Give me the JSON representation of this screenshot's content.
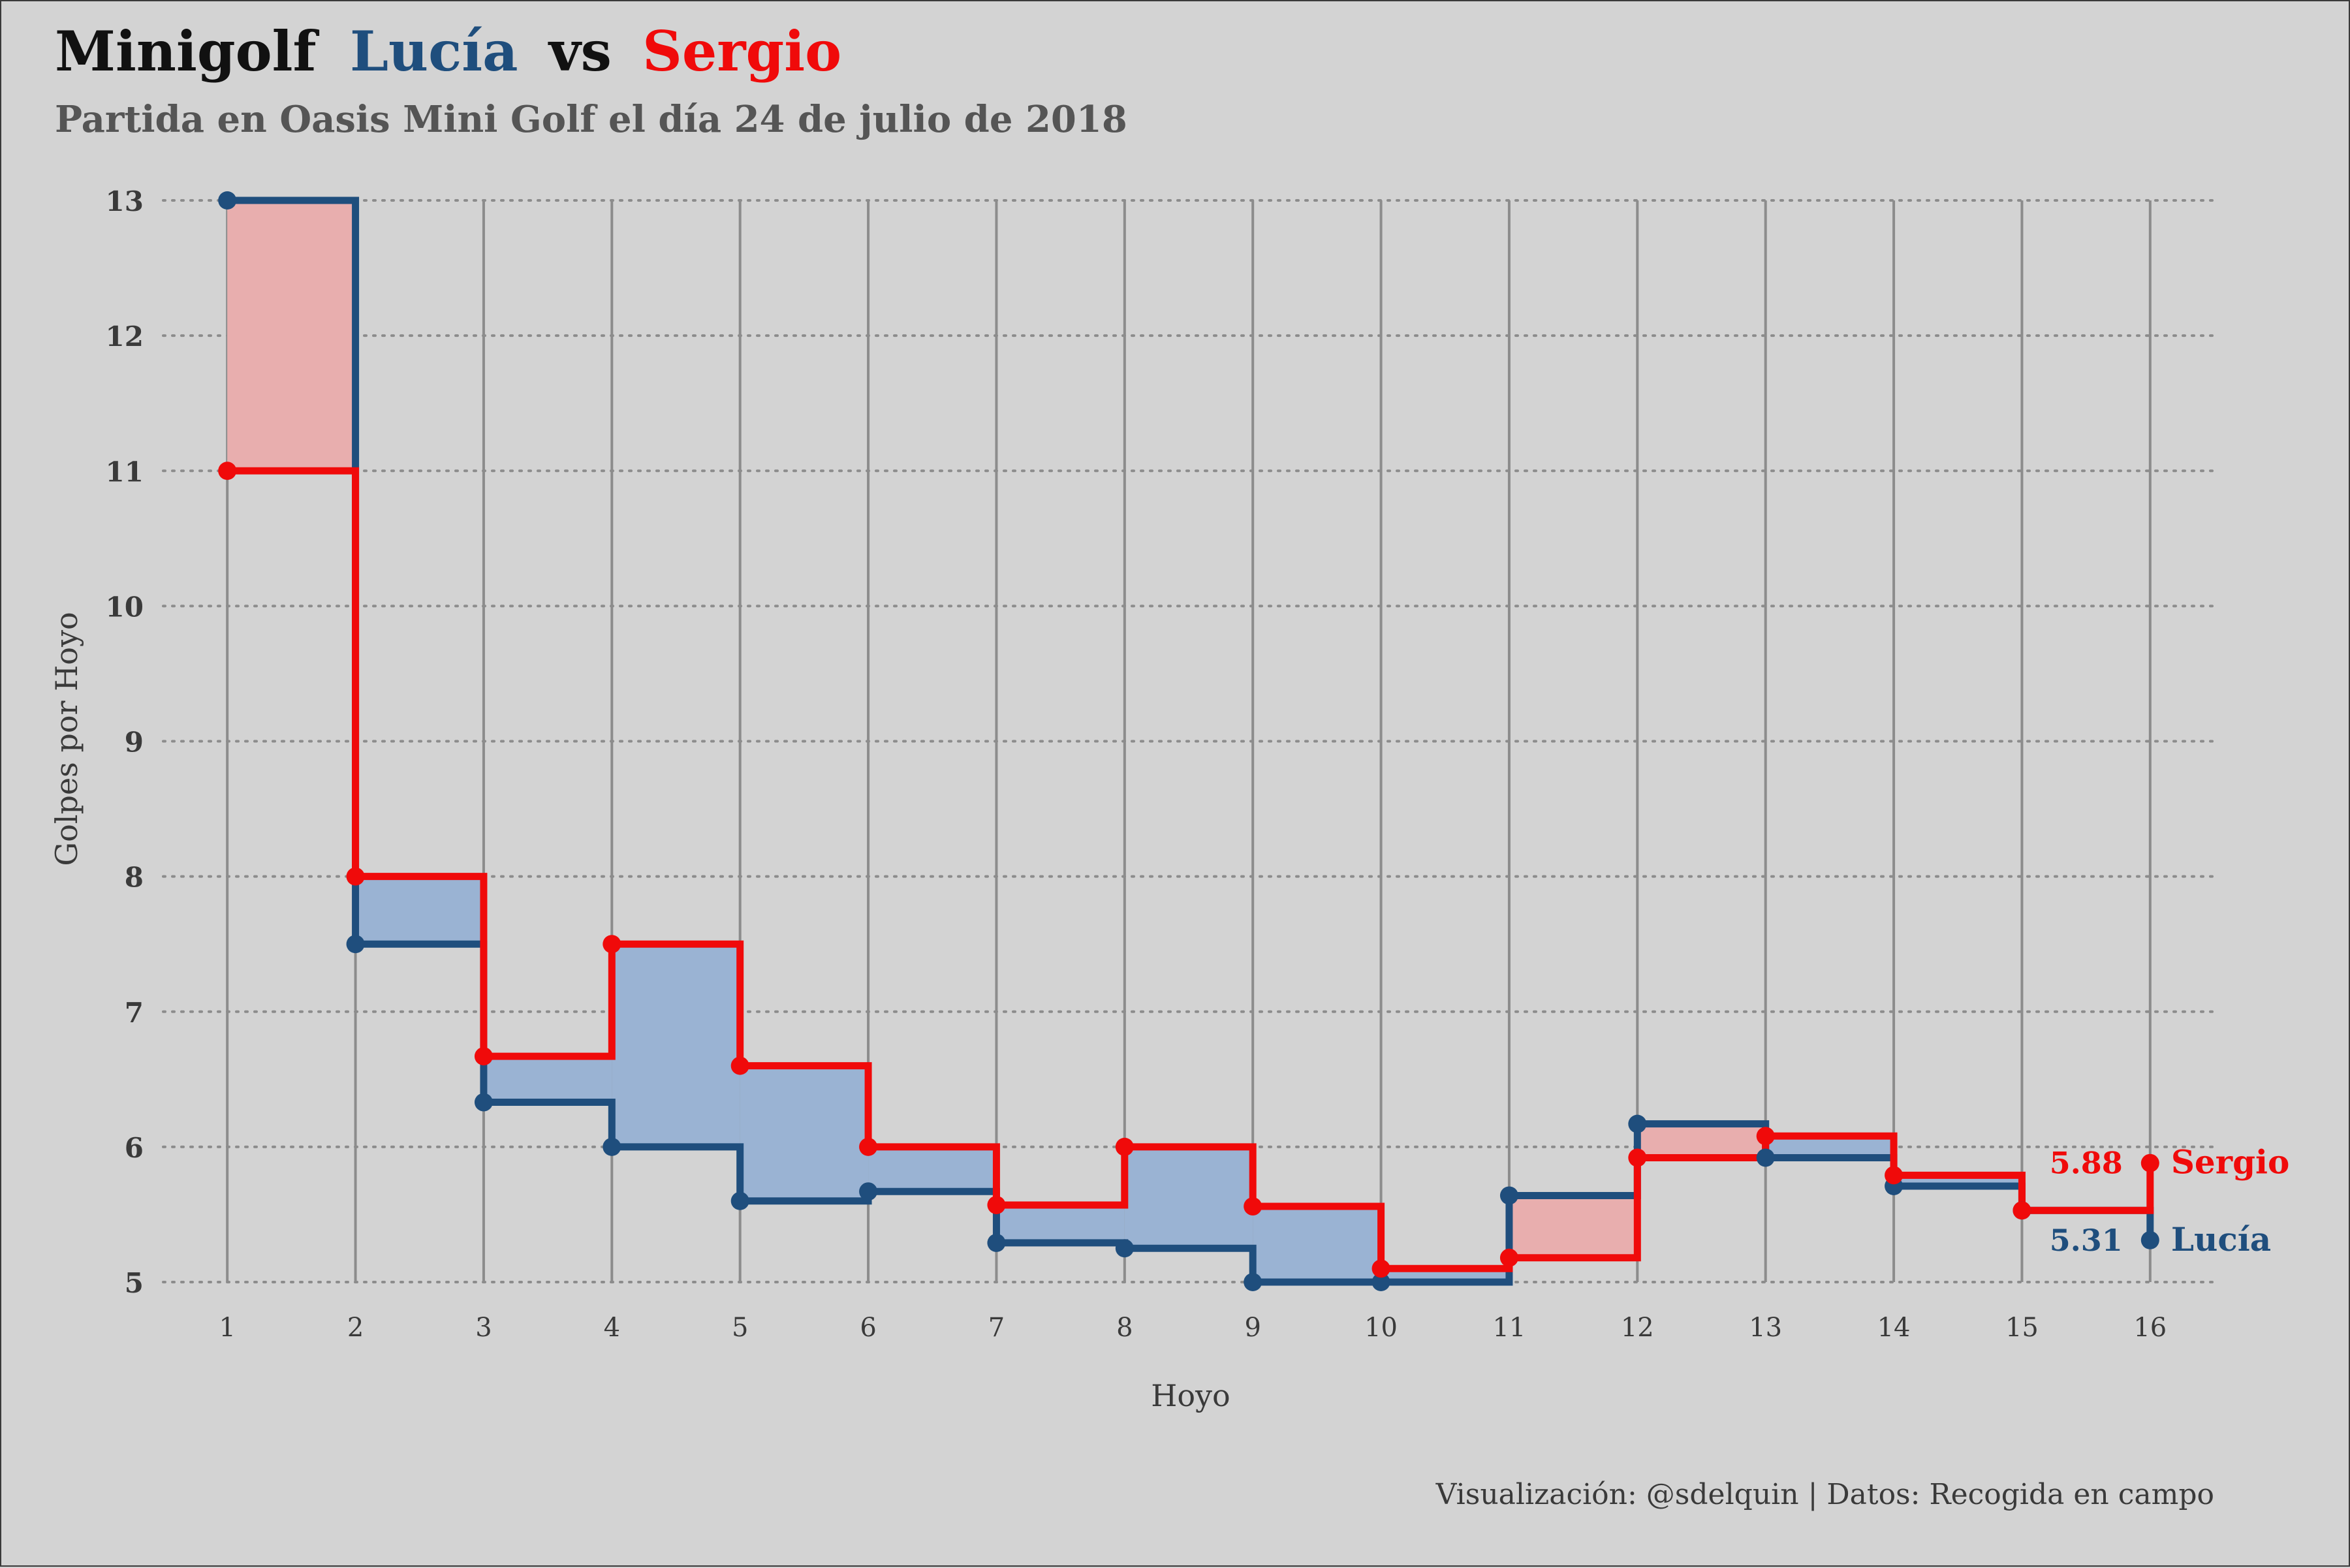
{
  "colors": {
    "background": "#d3d3d3",
    "lucia": "#1f4e7d",
    "sergio": "#f00a0a",
    "fill_blue": "#9ab3d3",
    "fill_red": "#e8aeae",
    "title": "#111111",
    "subtitle": "#555555",
    "axis_text": "#3a3a3a",
    "grid_x": "#8c8c8c",
    "grid_y": "#8c8c8c"
  },
  "header": {
    "title_prefix": "Minigolf",
    "title_player1": "Lucía",
    "title_vs": "vs",
    "title_player2": "Sergio",
    "subtitle": "Partida en Oasis Mini Golf el día 24 de julio de 2018"
  },
  "caption": "Visualización: @sdelquin | Datos: Recogida en campo",
  "chart_data": {
    "type": "line",
    "step": true,
    "x": [
      1,
      2,
      3,
      4,
      5,
      6,
      7,
      8,
      9,
      10,
      11,
      12,
      13,
      14,
      15,
      16
    ],
    "xlabel": "Hoyo",
    "ylabel": "Golpes por Hoyo",
    "xlim": [
      0.5,
      16.5
    ],
    "ylim": [
      5,
      13
    ],
    "x_ticks": [
      "1",
      "2",
      "3",
      "4",
      "5",
      "6",
      "7",
      "8",
      "9",
      "10",
      "11",
      "12",
      "13",
      "14",
      "15",
      "16"
    ],
    "y_ticks": [
      "5",
      "6",
      "7",
      "8",
      "9",
      "10",
      "11",
      "12",
      "13"
    ],
    "grid": "on",
    "series": [
      {
        "name": "Lucía",
        "color": "#1f4e7d",
        "values": [
          13,
          7.5,
          6.33,
          6,
          5.6,
          5.67,
          5.29,
          5.25,
          5,
          5,
          5.64,
          6.17,
          5.92,
          5.71,
          5.53,
          5.31
        ],
        "end_label": "5.31"
      },
      {
        "name": "Sergio",
        "color": "#f00a0a",
        "values": [
          11,
          8,
          6.67,
          7.5,
          6.6,
          6,
          5.57,
          6,
          5.56,
          5.1,
          5.18,
          5.92,
          6.08,
          5.79,
          5.53,
          5.88
        ],
        "end_label": "5.88"
      }
    ]
  }
}
